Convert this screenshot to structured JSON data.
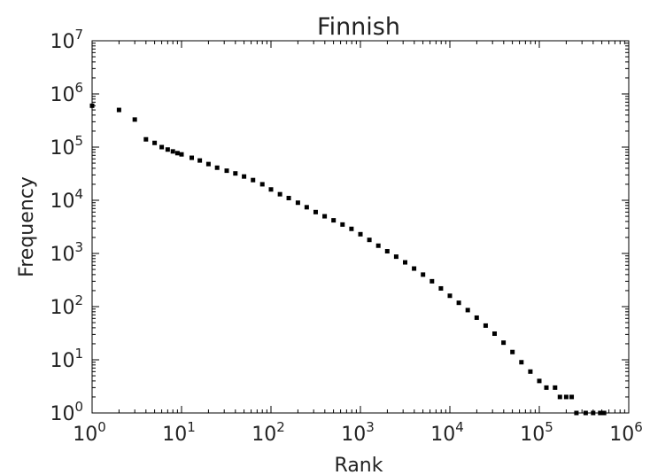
{
  "chart_data": {
    "type": "scatter",
    "title": "Finnish",
    "xlabel": "Rank",
    "ylabel": "Frequency",
    "x_scale": "log",
    "y_scale": "log",
    "xlim": [
      1,
      1000000
    ],
    "ylim": [
      1,
      10000000
    ],
    "x_ticks": [
      {
        "base": "10",
        "exp": "0",
        "value": 1
      },
      {
        "base": "10",
        "exp": "1",
        "value": 10
      },
      {
        "base": "10",
        "exp": "2",
        "value": 100
      },
      {
        "base": "10",
        "exp": "3",
        "value": 1000
      },
      {
        "base": "10",
        "exp": "4",
        "value": 10000
      },
      {
        "base": "10",
        "exp": "5",
        "value": 100000
      },
      {
        "base": "10",
        "exp": "6",
        "value": 1000000
      }
    ],
    "y_ticks": [
      {
        "base": "10",
        "exp": "0",
        "value": 1
      },
      {
        "base": "10",
        "exp": "1",
        "value": 10
      },
      {
        "base": "10",
        "exp": "2",
        "value": 100
      },
      {
        "base": "10",
        "exp": "3",
        "value": 1000
      },
      {
        "base": "10",
        "exp": "4",
        "value": 10000
      },
      {
        "base": "10",
        "exp": "5",
        "value": 100000
      },
      {
        "base": "10",
        "exp": "6",
        "value": 1000000
      },
      {
        "base": "10",
        "exp": "7",
        "value": 10000000
      }
    ],
    "grid": false,
    "marker_color": "#000000",
    "series": [
      {
        "points": [
          [
            1,
            600000
          ],
          [
            2,
            500000
          ],
          [
            3,
            330000
          ],
          [
            4,
            140000
          ],
          [
            5,
            120000
          ],
          [
            6,
            100000
          ],
          [
            7,
            90000
          ],
          [
            8,
            83000
          ],
          [
            9,
            77000
          ],
          [
            10,
            73000
          ],
          [
            13,
            63000
          ],
          [
            16,
            56000
          ],
          [
            20,
            48000
          ],
          [
            25,
            41000
          ],
          [
            32,
            36000
          ],
          [
            40,
            32000
          ],
          [
            50,
            28000
          ],
          [
            63,
            24000
          ],
          [
            80,
            20000
          ],
          [
            100,
            16000
          ],
          [
            126,
            13000
          ],
          [
            158,
            11000
          ],
          [
            200,
            9000
          ],
          [
            251,
            7400
          ],
          [
            316,
            6000
          ],
          [
            398,
            5000
          ],
          [
            501,
            4200
          ],
          [
            631,
            3500
          ],
          [
            794,
            2900
          ],
          [
            1000,
            2300
          ],
          [
            1259,
            1800
          ],
          [
            1585,
            1400
          ],
          [
            1995,
            1100
          ],
          [
            2512,
            870
          ],
          [
            3162,
            680
          ],
          [
            3981,
            520
          ],
          [
            5012,
            400
          ],
          [
            6310,
            300
          ],
          [
            7943,
            220
          ],
          [
            10000,
            160
          ],
          [
            12589,
            118
          ],
          [
            15849,
            86
          ],
          [
            19953,
            62
          ],
          [
            25119,
            44
          ],
          [
            31623,
            31
          ],
          [
            39811,
            21
          ],
          [
            50119,
            14
          ],
          [
            63096,
            9
          ],
          [
            79433,
            6
          ],
          [
            100000,
            4
          ],
          [
            120000,
            3
          ],
          [
            150000,
            3
          ],
          [
            170000,
            2
          ],
          [
            200000,
            2
          ],
          [
            230000,
            2
          ],
          [
            260000,
            1
          ],
          [
            330000,
            1
          ],
          [
            400000,
            1
          ],
          [
            480000,
            1
          ],
          [
            530000,
            1
          ]
        ]
      }
    ]
  }
}
